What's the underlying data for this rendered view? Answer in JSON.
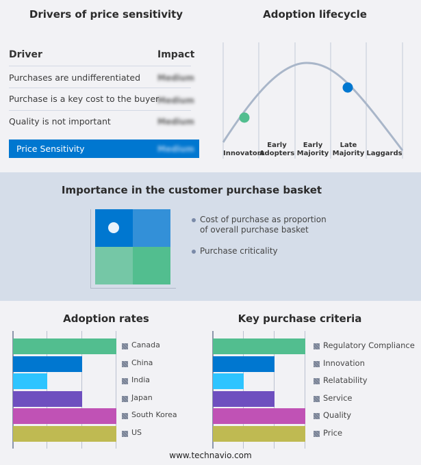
{
  "drivers": {
    "title": "Drivers of price sensitivity",
    "header": {
      "driver": "Driver",
      "impact": "Impact"
    },
    "rows": [
      {
        "driver": "Purchases are undifferentiated",
        "impact": "Medium"
      },
      {
        "driver": "Purchase is a key cost to the buyer",
        "impact": "Medium"
      },
      {
        "driver": "Quality is not important",
        "impact": "Medium"
      }
    ],
    "summary": {
      "driver": "Price Sensitivity",
      "impact": "Medium"
    }
  },
  "lifecycle": {
    "title": "Adoption lifecycle",
    "stages": [
      [
        "Innovators"
      ],
      [
        "Early",
        "Adopters"
      ],
      [
        "Early",
        "Majority"
      ],
      [
        "Late",
        "Majority"
      ],
      [
        "Laggards"
      ]
    ],
    "markers": [
      {
        "stage": "Innovators",
        "color": "#52be8f"
      },
      {
        "stage": "Late Majority",
        "color": "#0077d0"
      }
    ]
  },
  "basket": {
    "title": "Importance in the customer purchase basket",
    "legend": [
      "Cost of purchase as proportion of overall purchase basket",
      "Purchase criticality"
    ],
    "quadrant_colors": [
      "#0077d0",
      "#3390d8",
      "#75c7a6",
      "#52be8f"
    ],
    "selected_quadrant": "top-left"
  },
  "chart_data": [
    {
      "type": "bar",
      "title": "Adoption rates",
      "orientation": "horizontal",
      "categories": [
        "Canada",
        "China",
        "India",
        "Japan",
        "South Korea",
        "US"
      ],
      "values": [
        3,
        2,
        1,
        2,
        3,
        3
      ],
      "xlim": [
        0,
        3
      ],
      "grid": true,
      "legend_placement": "right",
      "colors": [
        "#52be8f",
        "#0077d0",
        "#2ec4ff",
        "#6e4fbf",
        "#c052b5",
        "#bfba52"
      ]
    },
    {
      "type": "bar",
      "title": "Key purchase criteria",
      "orientation": "horizontal",
      "categories": [
        "Regulatory Compliance",
        "Innovation",
        "Relatability",
        "Service",
        "Quality",
        "Price"
      ],
      "values": [
        3,
        2,
        1,
        2,
        3,
        3
      ],
      "xlim": [
        0,
        3
      ],
      "grid": true,
      "legend_placement": "right",
      "colors": [
        "#52be8f",
        "#0077d0",
        "#2ec4ff",
        "#6e4fbf",
        "#c052b5",
        "#bfba52"
      ]
    }
  ],
  "footer": "www.technavio.com"
}
